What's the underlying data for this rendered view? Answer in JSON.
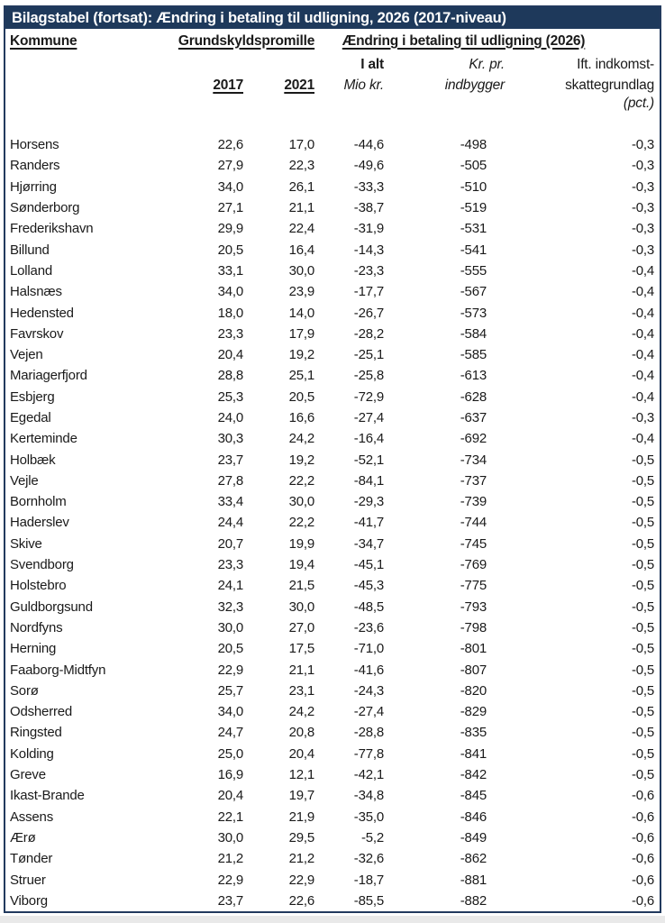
{
  "title": "Bilagstabel (fortsat): Ændring i betaling til udligning, 2026 (2017-niveau)",
  "colors": {
    "title_bg": "#1e395b",
    "title_text": "#ffffff",
    "frame_border": "#223a5e",
    "body_text": "#1a1a1a"
  },
  "header": {
    "kommune": "Kommune",
    "grundskyld": "Grundskyldspromille",
    "aendring": "Ændring i betaling til udligning (2026)",
    "col_2017": "2017",
    "col_2021": "2021",
    "ialt_line1": "I alt",
    "ialt_line2": "Mio kr.",
    "krpr_line1": "Kr. pr.",
    "krpr_line2": "indbygger",
    "pct_line1": "Ift. indkomst-",
    "pct_line2": "skattegrundlag",
    "pct_line3": "(pct.)"
  },
  "rows": [
    {
      "kommune": "Horsens",
      "g2017": "22,6",
      "g2021": "17,0",
      "ialt": "-44,6",
      "krpr": "-498",
      "pct": "-0,3"
    },
    {
      "kommune": "Randers",
      "g2017": "27,9",
      "g2021": "22,3",
      "ialt": "-49,6",
      "krpr": "-505",
      "pct": "-0,3"
    },
    {
      "kommune": "Hjørring",
      "g2017": "34,0",
      "g2021": "26,1",
      "ialt": "-33,3",
      "krpr": "-510",
      "pct": "-0,3"
    },
    {
      "kommune": "Sønderborg",
      "g2017": "27,1",
      "g2021": "21,1",
      "ialt": "-38,7",
      "krpr": "-519",
      "pct": "-0,3"
    },
    {
      "kommune": "Frederikshavn",
      "g2017": "29,9",
      "g2021": "22,4",
      "ialt": "-31,9",
      "krpr": "-531",
      "pct": "-0,3"
    },
    {
      "kommune": "Billund",
      "g2017": "20,5",
      "g2021": "16,4",
      "ialt": "-14,3",
      "krpr": "-541",
      "pct": "-0,3"
    },
    {
      "kommune": "Lolland",
      "g2017": "33,1",
      "g2021": "30,0",
      "ialt": "-23,3",
      "krpr": "-555",
      "pct": "-0,4"
    },
    {
      "kommune": "Halsnæs",
      "g2017": "34,0",
      "g2021": "23,9",
      "ialt": "-17,7",
      "krpr": "-567",
      "pct": "-0,4"
    },
    {
      "kommune": "Hedensted",
      "g2017": "18,0",
      "g2021": "14,0",
      "ialt": "-26,7",
      "krpr": "-573",
      "pct": "-0,4"
    },
    {
      "kommune": "Favrskov",
      "g2017": "23,3",
      "g2021": "17,9",
      "ialt": "-28,2",
      "krpr": "-584",
      "pct": "-0,4"
    },
    {
      "kommune": "Vejen",
      "g2017": "20,4",
      "g2021": "19,2",
      "ialt": "-25,1",
      "krpr": "-585",
      "pct": "-0,4"
    },
    {
      "kommune": "Mariagerfjord",
      "g2017": "28,8",
      "g2021": "25,1",
      "ialt": "-25,8",
      "krpr": "-613",
      "pct": "-0,4"
    },
    {
      "kommune": "Esbjerg",
      "g2017": "25,3",
      "g2021": "20,5",
      "ialt": "-72,9",
      "krpr": "-628",
      "pct": "-0,4"
    },
    {
      "kommune": "Egedal",
      "g2017": "24,0",
      "g2021": "16,6",
      "ialt": "-27,4",
      "krpr": "-637",
      "pct": "-0,3"
    },
    {
      "kommune": "Kerteminde",
      "g2017": "30,3",
      "g2021": "24,2",
      "ialt": "-16,4",
      "krpr": "-692",
      "pct": "-0,4"
    },
    {
      "kommune": "Holbæk",
      "g2017": "23,7",
      "g2021": "19,2",
      "ialt": "-52,1",
      "krpr": "-734",
      "pct": "-0,5"
    },
    {
      "kommune": "Vejle",
      "g2017": "27,8",
      "g2021": "22,2",
      "ialt": "-84,1",
      "krpr": "-737",
      "pct": "-0,5"
    },
    {
      "kommune": "Bornholm",
      "g2017": "33,4",
      "g2021": "30,0",
      "ialt": "-29,3",
      "krpr": "-739",
      "pct": "-0,5"
    },
    {
      "kommune": "Haderslev",
      "g2017": "24,4",
      "g2021": "22,2",
      "ialt": "-41,7",
      "krpr": "-744",
      "pct": "-0,5"
    },
    {
      "kommune": "Skive",
      "g2017": "20,7",
      "g2021": "19,9",
      "ialt": "-34,7",
      "krpr": "-745",
      "pct": "-0,5"
    },
    {
      "kommune": "Svendborg",
      "g2017": "23,3",
      "g2021": "19,4",
      "ialt": "-45,1",
      "krpr": "-769",
      "pct": "-0,5"
    },
    {
      "kommune": "Holstebro",
      "g2017": "24,1",
      "g2021": "21,5",
      "ialt": "-45,3",
      "krpr": "-775",
      "pct": "-0,5"
    },
    {
      "kommune": "Guldborgsund",
      "g2017": "32,3",
      "g2021": "30,0",
      "ialt": "-48,5",
      "krpr": "-793",
      "pct": "-0,5"
    },
    {
      "kommune": "Nordfyns",
      "g2017": "30,0",
      "g2021": "27,0",
      "ialt": "-23,6",
      "krpr": "-798",
      "pct": "-0,5"
    },
    {
      "kommune": "Herning",
      "g2017": "20,5",
      "g2021": "17,5",
      "ialt": "-71,0",
      "krpr": "-801",
      "pct": "-0,5"
    },
    {
      "kommune": "Faaborg-Midtfyn",
      "g2017": "22,9",
      "g2021": "21,1",
      "ialt": "-41,6",
      "krpr": "-807",
      "pct": "-0,5"
    },
    {
      "kommune": "Sorø",
      "g2017": "25,7",
      "g2021": "23,1",
      "ialt": "-24,3",
      "krpr": "-820",
      "pct": "-0,5"
    },
    {
      "kommune": "Odsherred",
      "g2017": "34,0",
      "g2021": "24,2",
      "ialt": "-27,4",
      "krpr": "-829",
      "pct": "-0,5"
    },
    {
      "kommune": "Ringsted",
      "g2017": "24,7",
      "g2021": "20,8",
      "ialt": "-28,8",
      "krpr": "-835",
      "pct": "-0,5"
    },
    {
      "kommune": "Kolding",
      "g2017": "25,0",
      "g2021": "20,4",
      "ialt": "-77,8",
      "krpr": "-841",
      "pct": "-0,5"
    },
    {
      "kommune": "Greve",
      "g2017": "16,9",
      "g2021": "12,1",
      "ialt": "-42,1",
      "krpr": "-842",
      "pct": "-0,5"
    },
    {
      "kommune": "Ikast-Brande",
      "g2017": "20,4",
      "g2021": "19,7",
      "ialt": "-34,8",
      "krpr": "-845",
      "pct": "-0,6"
    },
    {
      "kommune": "Assens",
      "g2017": "22,1",
      "g2021": "21,9",
      "ialt": "-35,0",
      "krpr": "-846",
      "pct": "-0,6"
    },
    {
      "kommune": "Ærø",
      "g2017": "30,0",
      "g2021": "29,5",
      "ialt": "-5,2",
      "krpr": "-849",
      "pct": "-0,6"
    },
    {
      "kommune": "Tønder",
      "g2017": "21,2",
      "g2021": "21,2",
      "ialt": "-32,6",
      "krpr": "-862",
      "pct": "-0,6"
    },
    {
      "kommune": "Struer",
      "g2017": "22,9",
      "g2021": "22,9",
      "ialt": "-18,7",
      "krpr": "-881",
      "pct": "-0,6"
    },
    {
      "kommune": "Viborg",
      "g2017": "23,7",
      "g2021": "22,6",
      "ialt": "-85,5",
      "krpr": "-882",
      "pct": "-0,6"
    }
  ]
}
